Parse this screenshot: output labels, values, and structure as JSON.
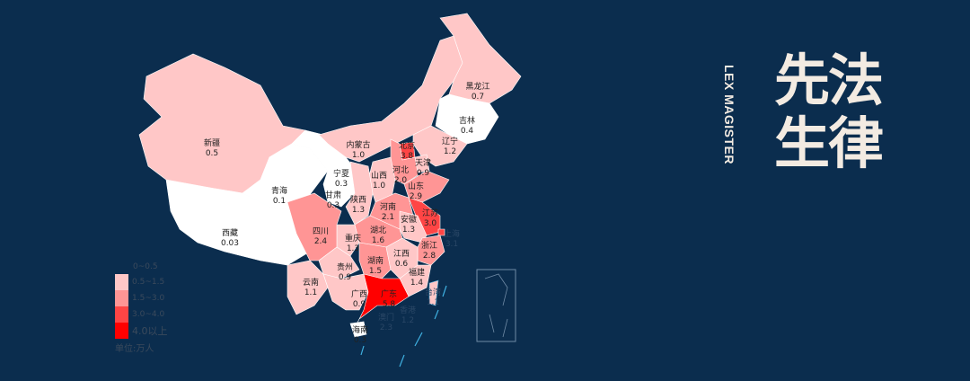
{
  "legend": {
    "items": [
      {
        "label": "0~0.5",
        "color": "#ffffff"
      },
      {
        "label": "0.5~1.5",
        "color": "#ffc7c7"
      },
      {
        "label": "1.5~3.0",
        "color": "#ff9595"
      },
      {
        "label": "3.0~4.0",
        "color": "#ff4545"
      },
      {
        "label": "4.0以上",
        "color": "#ff0000"
      }
    ],
    "unit": "单位:万人"
  },
  "provinces": [
    {
      "name": "新疆",
      "value": "0.5"
    },
    {
      "name": "西藏",
      "value": "0.03"
    },
    {
      "name": "青海",
      "value": "0.1"
    },
    {
      "name": "甘肃",
      "value": "0.3"
    },
    {
      "name": "内蒙古",
      "value": "1.0"
    },
    {
      "name": "黑龙江",
      "value": "0.7"
    },
    {
      "name": "吉林",
      "value": "0.4"
    },
    {
      "name": "辽宁",
      "value": "1.2"
    },
    {
      "name": "北京",
      "value": "3.8"
    },
    {
      "name": "天津",
      "value": "0.9"
    },
    {
      "name": "河北",
      "value": "2.0"
    },
    {
      "name": "山西",
      "value": "1.0"
    },
    {
      "name": "山东",
      "value": "2.9"
    },
    {
      "name": "宁夏",
      "value": "0.3"
    },
    {
      "name": "陕西",
      "value": "1.3"
    },
    {
      "name": "河南",
      "value": "2.1"
    },
    {
      "name": "江苏",
      "value": "3.0"
    },
    {
      "name": "安徽",
      "value": "1.3"
    },
    {
      "name": "上海",
      "value": "3.1"
    },
    {
      "name": "浙江",
      "value": "2.8"
    },
    {
      "name": "湖北",
      "value": "1.6"
    },
    {
      "name": "重庆",
      "value": "1.3"
    },
    {
      "name": "四川",
      "value": "2.4"
    },
    {
      "name": "贵州",
      "value": "0.9"
    },
    {
      "name": "湖南",
      "value": "1.5"
    },
    {
      "name": "江西",
      "value": "0.6"
    },
    {
      "name": "福建",
      "value": "1.4"
    },
    {
      "name": "云南",
      "value": "1.1"
    },
    {
      "name": "广西",
      "value": "0.9"
    },
    {
      "name": "广东",
      "value": "5.8"
    },
    {
      "name": "海南",
      "value": "0.3"
    },
    {
      "name": "台湾",
      "value": "1.1"
    },
    {
      "name": "香港",
      "value": "1.2"
    },
    {
      "name": "澳门",
      "value": "2.3"
    }
  ],
  "brand": {
    "en": "LEX MAGISTER",
    "cn": "先法生律"
  }
}
